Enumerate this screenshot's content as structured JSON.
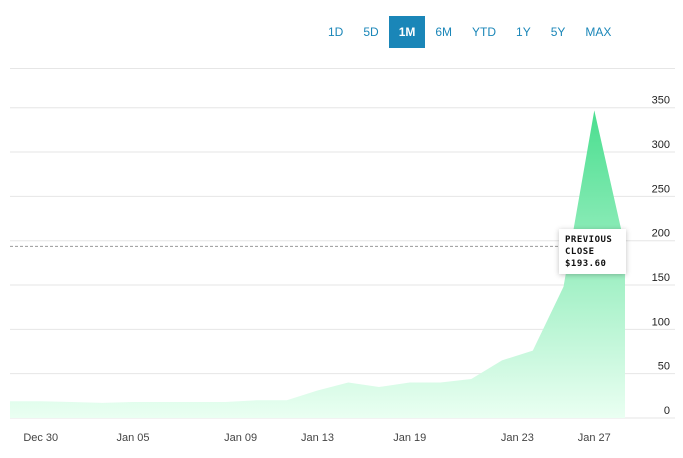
{
  "range_buttons": [
    {
      "label": "1D",
      "active": false
    },
    {
      "label": "5D",
      "active": false
    },
    {
      "label": "1M",
      "active": true
    },
    {
      "label": "6M",
      "active": false
    },
    {
      "label": "YTD",
      "active": false
    },
    {
      "label": "1Y",
      "active": false
    },
    {
      "label": "5Y",
      "active": false
    },
    {
      "label": "MAX",
      "active": false
    }
  ],
  "tooltip": {
    "line1": "PREVIOUS",
    "line2": "CLOSE",
    "value": "$193.60"
  },
  "colors": {
    "accent": "#1a86b8",
    "area_top": "#4ade8f",
    "area_bottom": "#eafff2"
  },
  "chart_data": {
    "type": "area",
    "x": [
      "Dec 28",
      "Dec 30",
      "Dec 31",
      "Jan 04",
      "Jan 05",
      "Jan 06",
      "Jan 07",
      "Jan 08",
      "Jan 11",
      "Jan 12",
      "Jan 13",
      "Jan 14",
      "Jan 15",
      "Jan 19",
      "Jan 20",
      "Jan 21",
      "Jan 22",
      "Jan 25",
      "Jan 26",
      "Jan 27",
      "Jan 28"
    ],
    "x_ticks": [
      "Dec 30",
      "Jan 05",
      "Jan 09",
      "Jan 13",
      "Jan 19",
      "Jan 23",
      "Jan 27"
    ],
    "values": [
      19,
      19,
      18,
      17,
      18,
      18,
      18,
      18,
      20,
      20,
      31,
      40,
      35,
      40,
      40,
      44,
      65,
      76,
      148,
      347,
      193.6
    ],
    "previous_close": 193.6,
    "y_ticks": [
      0,
      50,
      100,
      150,
      200,
      250,
      300,
      350
    ],
    "ylim": [
      0,
      370
    ],
    "grid": true
  }
}
